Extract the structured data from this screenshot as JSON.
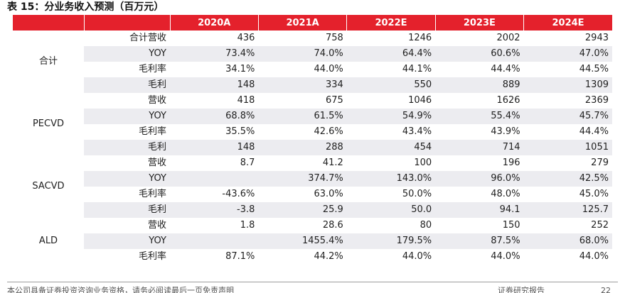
{
  "title": "表 15：分业务收入预测（百万元）",
  "table": {
    "headers": [
      "",
      "",
      "2020A",
      "2021A",
      "2022E",
      "2023E",
      "2024E"
    ],
    "groups": [
      {
        "name": "合计",
        "rows": [
          {
            "metric": "合计营收",
            "values": [
              "436",
              "758",
              "1246",
              "2002",
              "2943"
            ]
          },
          {
            "metric": "YOY",
            "values": [
              "73.4%",
              "74.0%",
              "64.4%",
              "60.6%",
              "47.0%"
            ]
          },
          {
            "metric": "毛利率",
            "values": [
              "34.1%",
              "44.0%",
              "44.1%",
              "44.4%",
              "44.5%"
            ]
          },
          {
            "metric": "毛利",
            "values": [
              "148",
              "334",
              "550",
              "889",
              "1309"
            ]
          }
        ]
      },
      {
        "name": "PECVD",
        "rows": [
          {
            "metric": "营收",
            "values": [
              "418",
              "675",
              "1046",
              "1626",
              "2369"
            ]
          },
          {
            "metric": "YOY",
            "values": [
              "68.8%",
              "61.5%",
              "54.9%",
              "55.4%",
              "45.7%"
            ]
          },
          {
            "metric": "毛利率",
            "values": [
              "35.5%",
              "42.6%",
              "43.4%",
              "43.9%",
              "44.4%"
            ]
          },
          {
            "metric": "毛利",
            "values": [
              "148",
              "288",
              "454",
              "714",
              "1051"
            ]
          }
        ]
      },
      {
        "name": "SACVD",
        "rows": [
          {
            "metric": "营收",
            "values": [
              "8.7",
              "41.2",
              "100",
              "196",
              "279"
            ]
          },
          {
            "metric": "YOY",
            "values": [
              "",
              "374.7%",
              "143.0%",
              "96.0%",
              "42.5%"
            ]
          },
          {
            "metric": "毛利率",
            "values": [
              "-43.6%",
              "63.0%",
              "50.0%",
              "48.0%",
              "45.0%"
            ]
          },
          {
            "metric": "毛利",
            "values": [
              "-3.8",
              "25.9",
              "50.0",
              "94.1",
              "125.7"
            ]
          }
        ]
      },
      {
        "name": "ALD",
        "rows": [
          {
            "metric": "营收",
            "values": [
              "1.8",
              "28.6",
              "80",
              "150",
              "252"
            ]
          },
          {
            "metric": "YOY",
            "values": [
              "",
              "1455.4%",
              "179.5%",
              "87.5%",
              "68.0%"
            ]
          },
          {
            "metric": "毛利率",
            "values": [
              "87.1%",
              "44.2%",
              "44.0%",
              "44.0%",
              "44.0%"
            ]
          }
        ]
      }
    ]
  },
  "footer": {
    "disclaimer": "本公司具备证券投资咨询业务资格，请务必阅读最后一页免责声明",
    "report_type": "证券研究报告",
    "page": "22"
  },
  "colors": {
    "header_bg": "#e4212c",
    "shade_bg": "#ececf0"
  }
}
